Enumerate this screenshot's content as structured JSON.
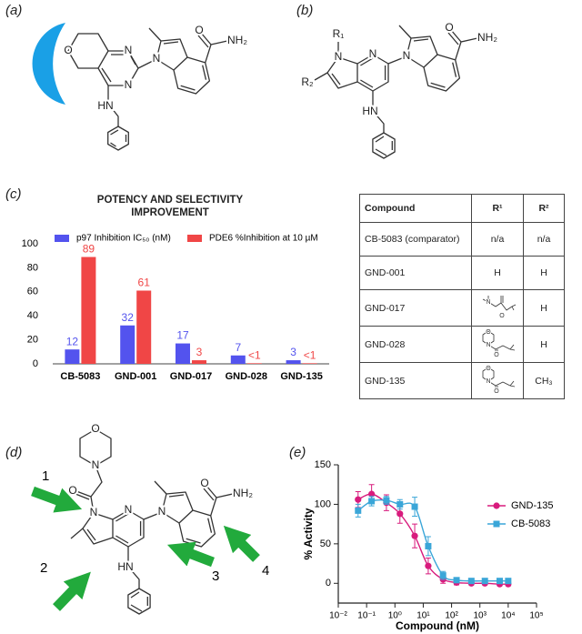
{
  "panel_labels": [
    "(a)",
    "(b)",
    "(c)",
    "(d)",
    "(e)"
  ],
  "structure_a": {
    "atoms": [
      "N",
      "N",
      "O",
      "HN",
      "N",
      "O",
      "NH₂"
    ]
  },
  "structure_b": {
    "atoms": [
      "R₁",
      "N",
      "N",
      "R₂",
      "HN",
      "N",
      "O",
      "NH₂"
    ]
  },
  "structure_d": {
    "atoms": [
      "O",
      "N",
      "O",
      "N",
      "N",
      "HN",
      "N",
      "O",
      "NH₂"
    ],
    "arrow_labels": [
      "1",
      "2",
      "3",
      "4"
    ]
  },
  "table": {
    "header": [
      "Compound",
      "R¹",
      "R²"
    ],
    "rows": [
      {
        "compound": "CB-5083 (comparator)",
        "r1": "n/a",
        "r2": "n/a"
      },
      {
        "compound": "GND-001",
        "r1": "H",
        "r2": "H"
      },
      {
        "compound": "GND-017",
        "r1_atoms": [
          "N",
          "O"
        ],
        "r2": "H"
      },
      {
        "compound": "GND-028",
        "r1_atoms": [
          "O",
          "N",
          "O"
        ],
        "r2": "H"
      },
      {
        "compound": "GND-135",
        "r1_atoms": [
          "O",
          "N",
          "O"
        ],
        "r2": "CH₃"
      }
    ]
  },
  "chart_data": [
    {
      "type": "bar",
      "title": "POTENCY AND SELECTIVITY IMPROVEMENT",
      "categories": [
        "CB-5083",
        "GND-001",
        "GND-017",
        "GND-028",
        "GND-135"
      ],
      "series": [
        {
          "name": "p97 Inhibition IC₅₀ (nM)",
          "color": "#5353ee",
          "values": [
            12,
            32,
            17,
            7,
            3
          ]
        },
        {
          "name": "PDE6 %Inhibition at 10 µM",
          "color": "#f04646",
          "values": [
            89,
            61,
            3,
            0.5,
            0.5
          ],
          "value_labels": [
            "89",
            "61",
            "3",
            "<1",
            "<1"
          ]
        }
      ],
      "ylim": [
        0,
        100
      ],
      "yticks": [
        0,
        20,
        40,
        60,
        80,
        100
      ],
      "grid": false,
      "legend": "top"
    },
    {
      "type": "scatter",
      "x_label": "Compound (nM)",
      "y_label": "% Activity",
      "xscale": "log",
      "xlim": [
        0.01,
        100000
      ],
      "xticks": [
        {
          "value": 0.01,
          "label": "10⁻²"
        },
        {
          "value": 0.1,
          "label": "10⁻¹"
        },
        {
          "value": 1,
          "label": "10⁰"
        },
        {
          "value": 10,
          "label": "10¹"
        },
        {
          "value": 100,
          "label": "10²"
        },
        {
          "value": 1000,
          "label": "10³"
        },
        {
          "value": 10000,
          "label": "10⁴"
        },
        {
          "value": 100000,
          "label": "10⁵"
        }
      ],
      "ylim": [
        -25,
        150
      ],
      "yticks": [
        0,
        50,
        100,
        150
      ],
      "legend": "right",
      "series": [
        {
          "name": "GND-135",
          "color": "#d81b7d",
          "marker": "circle",
          "x": [
            0.05,
            0.15,
            0.5,
            1.5,
            5,
            15,
            50,
            150,
            500,
            1500,
            5000,
            10000
          ],
          "values": [
            106,
            113,
            102,
            88,
            60,
            22,
            5,
            1,
            0,
            0,
            -1,
            -1
          ],
          "errors": [
            10,
            12,
            10,
            12,
            15,
            10,
            5,
            3,
            2,
            2,
            2,
            2
          ]
        },
        {
          "name": "CB-5083",
          "color": "#3aa6d8",
          "marker": "square",
          "x": [
            0.05,
            0.15,
            0.5,
            1.5,
            5,
            15,
            50,
            150,
            500,
            1500,
            5000,
            10000
          ],
          "values": [
            92,
            104,
            105,
            100,
            97,
            47,
            10,
            4,
            3,
            3,
            3,
            3
          ],
          "errors": [
            8,
            6,
            5,
            6,
            12,
            12,
            5,
            3,
            2,
            2,
            2,
            2
          ]
        }
      ]
    }
  ]
}
